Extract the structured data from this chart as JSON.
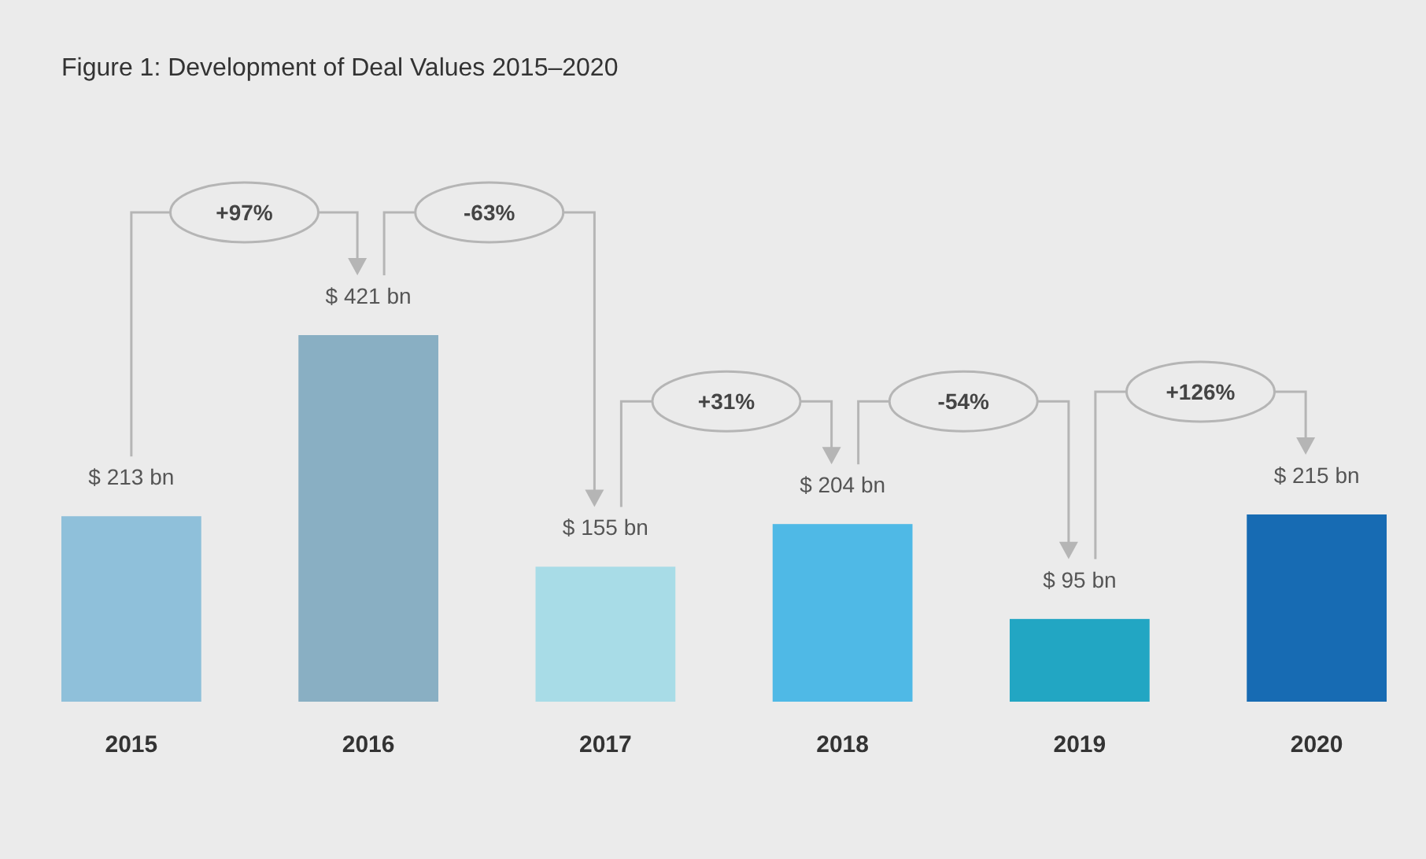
{
  "chart_data": {
    "type": "bar",
    "title": "Figure 1: Development of Deal Values 2015–2020",
    "categories": [
      "2015",
      "2016",
      "2017",
      "2018",
      "2019",
      "2020"
    ],
    "values": [
      213,
      421,
      155,
      204,
      95,
      215
    ],
    "colors": [
      "#8fc0da",
      "#89afc3",
      "#a8dce7",
      "#4fb9e6",
      "#22a6c3",
      "#176bb3"
    ],
    "value_labels": [
      "$ 213 bn",
      "$ 421 bn",
      "$ 155 bn",
      "$ 204 bn",
      "$ 95 bn",
      "$ 215 bn"
    ],
    "annotations": [
      "+97%",
      "-63%",
      "+31%",
      "-54%",
      "+126%"
    ]
  }
}
